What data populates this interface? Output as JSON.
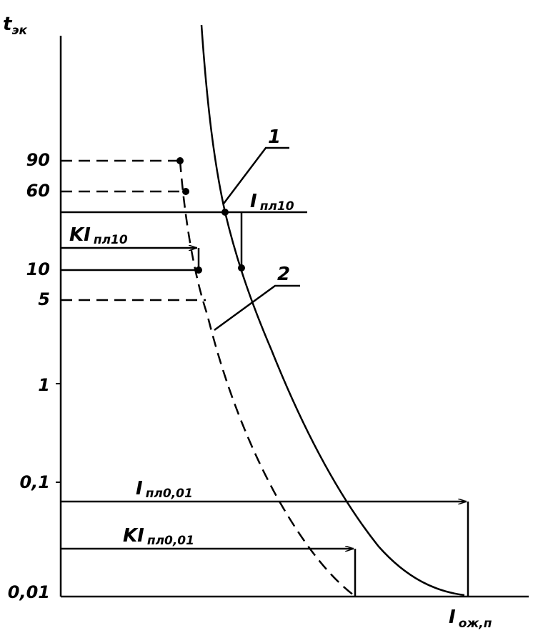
{
  "y_axis": {
    "label": {
      "symbol": "t",
      "subscript": "эк"
    },
    "ticks": [
      "90",
      "60",
      "10",
      "5",
      "1",
      "0,1",
      "0,01"
    ]
  },
  "x_axis": {
    "label": {
      "symbol": "I",
      "subscript": "ож,п"
    }
  },
  "curves": [
    {
      "label": "1"
    },
    {
      "label": "2"
    }
  ],
  "annotations": [
    {
      "symbol": "I",
      "subscript": "пл10"
    },
    {
      "symbol": "KI",
      "subscript": "пл10"
    },
    {
      "symbol": "I",
      "subscript": "пл0,01"
    },
    {
      "symbol": "KI",
      "subscript": "пл0,01"
    }
  ]
}
